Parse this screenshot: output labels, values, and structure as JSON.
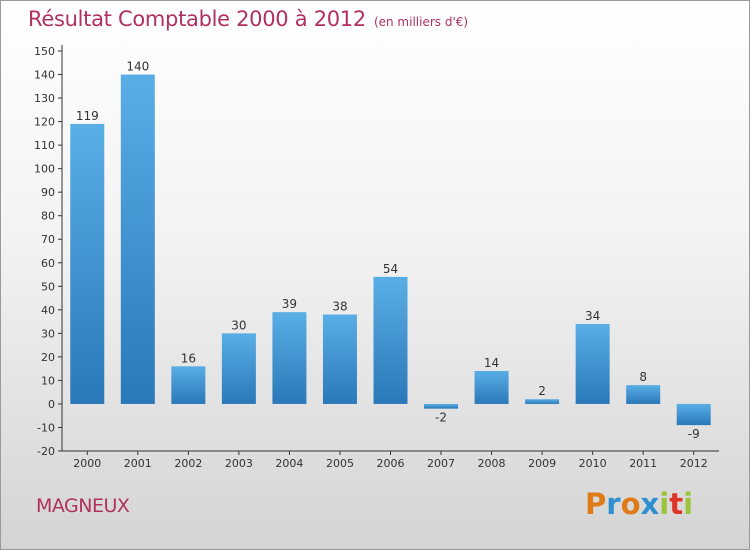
{
  "chart_data": {
    "type": "bar",
    "title": "Résultat Comptable 2000 à 2012",
    "subtitle": "(en milliers d'€)",
    "categories": [
      "2000",
      "2001",
      "2002",
      "2003",
      "2004",
      "2005",
      "2006",
      "2007",
      "2008",
      "2009",
      "2010",
      "2011",
      "2012"
    ],
    "values": [
      119,
      140,
      16,
      30,
      39,
      38,
      54,
      -2,
      14,
      2,
      34,
      8,
      -9
    ],
    "ylim": [
      -20,
      150
    ],
    "yticks": [
      -20,
      -10,
      0,
      10,
      20,
      30,
      40,
      50,
      60,
      70,
      80,
      90,
      100,
      110,
      120,
      130,
      140,
      150
    ],
    "xlabel": "",
    "ylabel": "",
    "grid": false,
    "bar_color_light": "#5aaee6",
    "bar_color_dark": "#2a78b8"
  },
  "footer": {
    "place": "MAGNEUX",
    "logo_letters": [
      "P",
      "r",
      "o",
      "x",
      "i",
      "t",
      "i"
    ],
    "logo_colors": [
      "#e07b1a",
      "#2f8fd0",
      "#e07b1a",
      "#2f8fd0",
      "#9bc43a",
      "#e0342a",
      "#9bc43a"
    ]
  },
  "colors": {
    "title": "#b03060",
    "axis": "#333333"
  }
}
